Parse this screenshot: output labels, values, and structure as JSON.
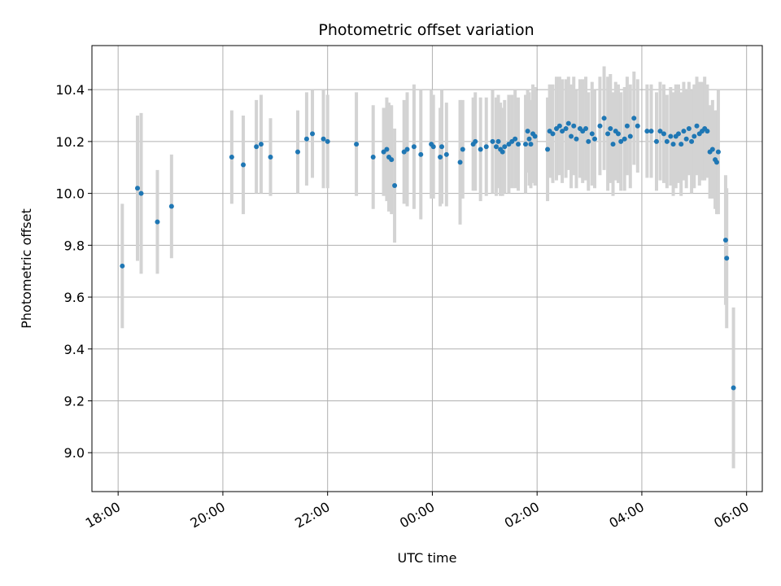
{
  "chart_data": {
    "type": "scatter",
    "title": "Photometric offset variation",
    "xlabel": "UTC time",
    "ylabel": "Photometric offset",
    "x_unit": "hours UTC",
    "xlim": [
      17.5,
      30.3
    ],
    "ylim": [
      8.85,
      10.57
    ],
    "grid": true,
    "legend": "none",
    "x_ticks": [
      {
        "value": 18,
        "label": "18:00"
      },
      {
        "value": 20,
        "label": "20:00"
      },
      {
        "value": 22,
        "label": "22:00"
      },
      {
        "value": 24,
        "label": "00:00"
      },
      {
        "value": 26,
        "label": "02:00"
      },
      {
        "value": 28,
        "label": "04:00"
      },
      {
        "value": 30,
        "label": "06:00"
      }
    ],
    "y_ticks": [
      {
        "value": 9.0,
        "label": "9.0"
      },
      {
        "value": 9.2,
        "label": "9.2"
      },
      {
        "value": 9.4,
        "label": "9.4"
      },
      {
        "value": 9.6,
        "label": "9.6"
      },
      {
        "value": 9.8,
        "label": "9.8"
      },
      {
        "value": 10.0,
        "label": "10.0"
      },
      {
        "value": 10.2,
        "label": "10.2"
      },
      {
        "value": 10.4,
        "label": "10.4"
      }
    ],
    "colors": {
      "point": "#1f77b4",
      "errorbar": "#d3d3d3",
      "grid": "#b0b0b0"
    },
    "series": [
      {
        "x": [
          18.08,
          18.37,
          18.44,
          18.75,
          19.02,
          20.17,
          20.39,
          20.64,
          20.73,
          20.91,
          21.43,
          21.6,
          21.71,
          21.92,
          22.0,
          22.55,
          22.87,
          23.07,
          23.13,
          23.17,
          23.22,
          23.28,
          23.46,
          23.52,
          23.65,
          23.78,
          23.98,
          24.02,
          24.15,
          24.18,
          24.27,
          24.53,
          24.58,
          24.78,
          24.82,
          24.92,
          25.03,
          25.15,
          25.22,
          25.26,
          25.3,
          25.34,
          25.38,
          25.46,
          25.52,
          25.58,
          25.64,
          25.78,
          25.82,
          25.85,
          25.88,
          25.92,
          25.96,
          26.2,
          26.24,
          26.3,
          26.37,
          26.43,
          26.48,
          26.55,
          26.6,
          26.65,
          26.7,
          26.75,
          26.82,
          26.87,
          26.93,
          26.98,
          27.05,
          27.1,
          27.2,
          27.28,
          27.35,
          27.4,
          27.45,
          27.5,
          27.55,
          27.6,
          27.67,
          27.72,
          27.78,
          27.85,
          27.92,
          28.1,
          28.18,
          28.28,
          28.35,
          28.42,
          28.48,
          28.55,
          28.6,
          28.65,
          28.7,
          28.75,
          28.8,
          28.85,
          28.9,
          28.95,
          29.0,
          29.05,
          29.1,
          29.15,
          29.2,
          29.25,
          29.3,
          29.35,
          29.4,
          29.43,
          29.46,
          29.6,
          29.62,
          29.75
        ],
        "y": [
          9.72,
          10.02,
          10.0,
          9.89,
          9.95,
          10.14,
          10.11,
          10.18,
          10.19,
          10.14,
          10.16,
          10.21,
          10.23,
          10.21,
          10.2,
          10.19,
          10.14,
          10.16,
          10.17,
          10.14,
          10.13,
          10.03,
          10.16,
          10.17,
          10.18,
          10.15,
          10.19,
          10.18,
          10.14,
          10.18,
          10.15,
          10.12,
          10.17,
          10.19,
          10.2,
          10.17,
          10.18,
          10.2,
          10.18,
          10.2,
          10.17,
          10.16,
          10.18,
          10.19,
          10.2,
          10.21,
          10.19,
          10.19,
          10.24,
          10.21,
          10.19,
          10.23,
          10.22,
          10.17,
          10.24,
          10.23,
          10.25,
          10.26,
          10.24,
          10.25,
          10.27,
          10.22,
          10.26,
          10.21,
          10.25,
          10.24,
          10.25,
          10.2,
          10.23,
          10.21,
          10.26,
          10.29,
          10.23,
          10.25,
          10.19,
          10.24,
          10.23,
          10.2,
          10.21,
          10.26,
          10.22,
          10.29,
          10.26,
          10.24,
          10.24,
          10.2,
          10.24,
          10.23,
          10.2,
          10.22,
          10.19,
          10.22,
          10.23,
          10.19,
          10.24,
          10.21,
          10.25,
          10.2,
          10.22,
          10.26,
          10.23,
          10.24,
          10.25,
          10.24,
          10.16,
          10.17,
          10.13,
          10.12,
          10.16,
          9.82,
          9.75,
          9.25
        ],
        "err": [
          0.24,
          0.28,
          0.31,
          0.2,
          0.2,
          0.18,
          0.19,
          0.18,
          0.19,
          0.15,
          0.16,
          0.18,
          0.17,
          0.19,
          0.18,
          0.2,
          0.2,
          0.17,
          0.2,
          0.21,
          0.21,
          0.22,
          0.2,
          0.22,
          0.24,
          0.25,
          0.21,
          0.2,
          0.19,
          0.22,
          0.2,
          0.24,
          0.19,
          0.18,
          0.19,
          0.2,
          0.19,
          0.2,
          0.19,
          0.18,
          0.18,
          0.17,
          0.18,
          0.19,
          0.18,
          0.19,
          0.18,
          0.19,
          0.16,
          0.18,
          0.17,
          0.19,
          0.19,
          0.2,
          0.18,
          0.19,
          0.2,
          0.19,
          0.2,
          0.19,
          0.18,
          0.2,
          0.19,
          0.19,
          0.19,
          0.2,
          0.2,
          0.19,
          0.2,
          0.19,
          0.19,
          0.2,
          0.22,
          0.21,
          0.2,
          0.19,
          0.19,
          0.19,
          0.2,
          0.19,
          0.2,
          0.18,
          0.18,
          0.18,
          0.18,
          0.19,
          0.19,
          0.19,
          0.18,
          0.19,
          0.2,
          0.2,
          0.19,
          0.2,
          0.19,
          0.19,
          0.18,
          0.2,
          0.2,
          0.19,
          0.2,
          0.19,
          0.2,
          0.18,
          0.18,
          0.19,
          0.19,
          0.2,
          0.24,
          0.25,
          0.27,
          0.31
        ]
      }
    ]
  }
}
